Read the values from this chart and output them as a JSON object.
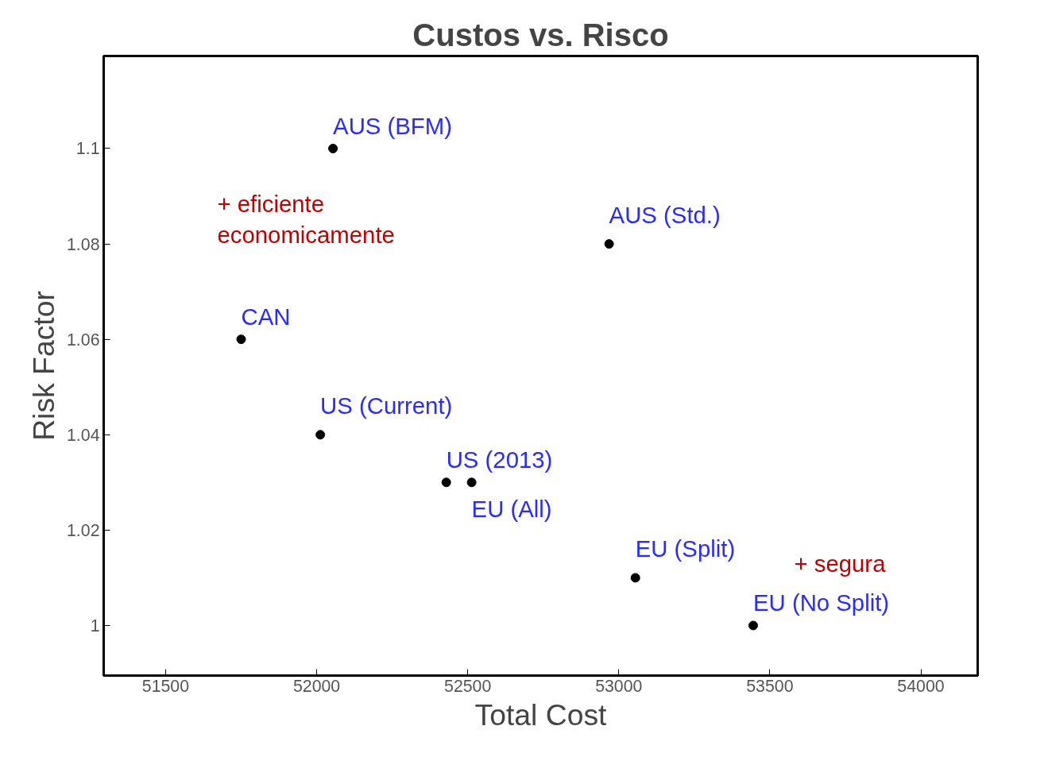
{
  "chart_data": {
    "type": "scatter",
    "title": "Custos vs. Risco",
    "xlabel": "Total Cost",
    "ylabel": "Risk Factor",
    "x": [
      52054,
      52968,
      51750,
      52012,
      52429,
      52513,
      53055,
      53445
    ],
    "series": [
      {
        "color": "#000000",
        "values": [
          1.1,
          1.08,
          1.06,
          1.04,
          1.03,
          1.03,
          1.01,
          1.0
        ]
      }
    ],
    "xlim": [
      51295,
      54188
    ],
    "ylim": [
      0.9895,
      1.1194
    ],
    "xticks": [
      51500,
      52000,
      52500,
      53000,
      53500,
      54000
    ],
    "yticks": [
      1,
      1.02,
      1.04,
      1.06,
      1.08,
      1.1
    ],
    "grid": false,
    "marker": "circle",
    "annotations": [
      {
        "text": "AUS (BFM)",
        "x": 52054,
        "y": 1.1
      },
      {
        "text": "AUS (Std.)",
        "x": 52968,
        "y": 1.08
      },
      {
        "text": "CAN",
        "x": 51750,
        "y": 1.06
      },
      {
        "text": "US (Current)",
        "x": 52012,
        "y": 1.04
      },
      {
        "text": "US (2013)",
        "x": 52429,
        "y": 1.03
      },
      {
        "text": "EU (All)",
        "x": 52513,
        "y": 1.03
      },
      {
        "text": "EU (Split)",
        "x": 53055,
        "y": 1.01
      },
      {
        "text": "EU (No Split)",
        "x": 53445,
        "y": 1.0
      },
      "+ eficiente\neconomicamente",
      "+ segura"
    ]
  }
}
